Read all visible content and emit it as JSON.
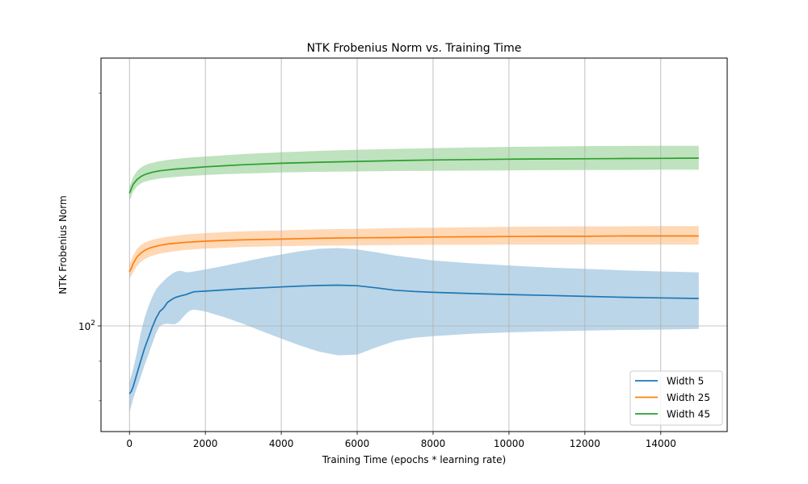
{
  "chart_data": {
    "type": "line",
    "title": "NTK Frobenius Norm vs. Training Time",
    "xlabel": "Training Time (epochs * learning rate)",
    "ylabel": "NTK Frobenius Norm",
    "y_scale": "log",
    "xlim": [
      -750,
      15750
    ],
    "ylim": [
      73,
      222
    ],
    "x_ticks": [
      0,
      2000,
      4000,
      6000,
      8000,
      10000,
      12000,
      14000
    ],
    "x_tick_labels": [
      "0",
      "2000",
      "4000",
      "6000",
      "8000",
      "10000",
      "12000",
      "14000"
    ],
    "y_major_ticks": [
      100
    ],
    "y_tick_base": "10",
    "y_tick_exponent": "2",
    "y_minor_ticks": [
      80,
      90,
      200
    ],
    "grid": true,
    "legend_position": "lower right",
    "series": [
      {
        "name": "Width 5",
        "color": "#1f77b4",
        "points": [
          [
            0,
            81.7
          ],
          [
            50,
            82.3
          ],
          [
            100,
            83.5
          ],
          [
            200,
            86.8
          ],
          [
            300,
            90.2
          ],
          [
            400,
            93.6
          ],
          [
            500,
            96.5
          ],
          [
            600,
            99.6
          ],
          [
            700,
            102.3
          ],
          [
            800,
            104.4
          ],
          [
            900,
            105.5
          ],
          [
            1000,
            107.2
          ],
          [
            1100,
            108.1
          ],
          [
            1200,
            108.8
          ],
          [
            1300,
            109.2
          ],
          [
            1400,
            109.5
          ],
          [
            1500,
            109.8
          ],
          [
            1600,
            110.3
          ],
          [
            1700,
            110.7
          ],
          [
            2000,
            110.9
          ],
          [
            2500,
            111.3
          ],
          [
            3000,
            111.7
          ],
          [
            3500,
            112.0
          ],
          [
            4000,
            112.3
          ],
          [
            4500,
            112.6
          ],
          [
            5000,
            112.8
          ],
          [
            5500,
            112.9
          ],
          [
            6000,
            112.7
          ],
          [
            6500,
            112.0
          ],
          [
            7000,
            111.2
          ],
          [
            7500,
            110.8
          ],
          [
            8000,
            110.5
          ],
          [
            9000,
            110.1
          ],
          [
            10000,
            109.8
          ],
          [
            11000,
            109.5
          ],
          [
            12000,
            109.2
          ],
          [
            13000,
            108.9
          ],
          [
            14000,
            108.7
          ],
          [
            15000,
            108.5
          ]
        ],
        "lower": [
          [
            0,
            77.3
          ],
          [
            100,
            80.5
          ],
          [
            200,
            83.3
          ],
          [
            300,
            86.0
          ],
          [
            400,
            89.0
          ],
          [
            500,
            91.8
          ],
          [
            600,
            94.8
          ],
          [
            700,
            97.8
          ],
          [
            800,
            100.0
          ],
          [
            900,
            100.5
          ],
          [
            1000,
            100.7
          ],
          [
            1100,
            100.5
          ],
          [
            1200,
            100.5
          ],
          [
            1300,
            101.2
          ],
          [
            1400,
            102.5
          ],
          [
            1500,
            103.8
          ],
          [
            1600,
            104.7
          ],
          [
            1700,
            105.0
          ],
          [
            2000,
            104.4
          ],
          [
            2500,
            102.6
          ],
          [
            3000,
            100.6
          ],
          [
            3500,
            98.4
          ],
          [
            4000,
            96.3
          ],
          [
            4500,
            94.3
          ],
          [
            5000,
            92.6
          ],
          [
            5500,
            91.6
          ],
          [
            6000,
            91.8
          ],
          [
            6500,
            93.8
          ],
          [
            7000,
            95.6
          ],
          [
            7500,
            96.5
          ],
          [
            8000,
            97.0
          ],
          [
            9000,
            97.7
          ],
          [
            10000,
            98.1
          ],
          [
            11000,
            98.4
          ],
          [
            12000,
            98.6
          ],
          [
            13000,
            98.8
          ],
          [
            14000,
            98.9
          ],
          [
            15000,
            99.1
          ]
        ],
        "upper": [
          [
            0,
            84.5
          ],
          [
            100,
            88.0
          ],
          [
            200,
            92.5
          ],
          [
            300,
            98.0
          ],
          [
            400,
            102.5
          ],
          [
            500,
            106.0
          ],
          [
            600,
            109.0
          ],
          [
            700,
            111.5
          ],
          [
            800,
            113.0
          ],
          [
            900,
            114.3
          ],
          [
            1000,
            115.6
          ],
          [
            1100,
            116.6
          ],
          [
            1200,
            117.4
          ],
          [
            1300,
            117.8
          ],
          [
            1400,
            117.7
          ],
          [
            1500,
            117.3
          ],
          [
            1600,
            117.4
          ],
          [
            1700,
            117.6
          ],
          [
            2000,
            118.3
          ],
          [
            2500,
            119.6
          ],
          [
            3000,
            121.0
          ],
          [
            3500,
            122.4
          ],
          [
            4000,
            123.7
          ],
          [
            4500,
            124.9
          ],
          [
            5000,
            125.8
          ],
          [
            5500,
            126.1
          ],
          [
            6000,
            125.6
          ],
          [
            6500,
            124.5
          ],
          [
            7000,
            123.3
          ],
          [
            7500,
            122.4
          ],
          [
            8000,
            121.5
          ],
          [
            9000,
            120.5
          ],
          [
            10000,
            119.7
          ],
          [
            11000,
            119.0
          ],
          [
            12000,
            118.5
          ],
          [
            13000,
            118.0
          ],
          [
            14000,
            117.6
          ],
          [
            15000,
            117.3
          ]
        ]
      },
      {
        "name": "Width 25",
        "color": "#ff7f0e",
        "points": [
          [
            0,
            117.5
          ],
          [
            50,
            118.7
          ],
          [
            100,
            120.5
          ],
          [
            200,
            122.8
          ],
          [
            300,
            124.2
          ],
          [
            400,
            125.2
          ],
          [
            500,
            125.9
          ],
          [
            600,
            126.4
          ],
          [
            800,
            127.1
          ],
          [
            1000,
            127.6
          ],
          [
            1200,
            127.9
          ],
          [
            1500,
            128.3
          ],
          [
            2000,
            128.7
          ],
          [
            2500,
            129.0
          ],
          [
            3000,
            129.2
          ],
          [
            4000,
            129.5
          ],
          [
            5000,
            129.8
          ],
          [
            6000,
            130.0
          ],
          [
            7000,
            130.1
          ],
          [
            8000,
            130.3
          ],
          [
            9000,
            130.4
          ],
          [
            10000,
            130.5
          ],
          [
            11000,
            130.6
          ],
          [
            12000,
            130.6
          ],
          [
            13000,
            130.7
          ],
          [
            14000,
            130.7
          ],
          [
            15000,
            130.7
          ]
        ],
        "lower": [
          [
            0,
            115.0
          ],
          [
            100,
            117.3
          ],
          [
            200,
            119.5
          ],
          [
            300,
            121.0
          ],
          [
            400,
            122.0
          ],
          [
            500,
            122.7
          ],
          [
            600,
            123.2
          ],
          [
            800,
            124.0
          ],
          [
            1000,
            124.5
          ],
          [
            1200,
            124.9
          ],
          [
            1500,
            125.4
          ],
          [
            2000,
            125.9
          ],
          [
            2500,
            126.2
          ],
          [
            3000,
            126.5
          ],
          [
            4000,
            126.8
          ],
          [
            5000,
            127.0
          ],
          [
            6000,
            127.1
          ],
          [
            7000,
            127.2
          ],
          [
            8000,
            127.3
          ],
          [
            9000,
            127.3
          ],
          [
            10000,
            127.4
          ],
          [
            11000,
            127.4
          ],
          [
            12000,
            127.4
          ],
          [
            13000,
            127.4
          ],
          [
            14000,
            127.4
          ],
          [
            15000,
            127.4
          ]
        ],
        "upper": [
          [
            0,
            120.0
          ],
          [
            100,
            123.4
          ],
          [
            200,
            125.8
          ],
          [
            300,
            127.2
          ],
          [
            400,
            128.1
          ],
          [
            500,
            128.7
          ],
          [
            600,
            129.2
          ],
          [
            800,
            129.9
          ],
          [
            1000,
            130.4
          ],
          [
            1200,
            130.8
          ],
          [
            1500,
            131.3
          ],
          [
            2000,
            131.8
          ],
          [
            2500,
            132.2
          ],
          [
            3000,
            132.5
          ],
          [
            4000,
            132.9
          ],
          [
            5000,
            133.3
          ],
          [
            6000,
            133.5
          ],
          [
            7000,
            133.8
          ],
          [
            8000,
            134.0
          ],
          [
            9000,
            134.1
          ],
          [
            10000,
            134.3
          ],
          [
            11000,
            134.4
          ],
          [
            12000,
            134.5
          ],
          [
            13000,
            134.5
          ],
          [
            14000,
            134.6
          ],
          [
            15000,
            134.6
          ]
        ]
      },
      {
        "name": "Width 45",
        "color": "#2ca02c",
        "points": [
          [
            0,
            148.5
          ],
          [
            50,
            150.5
          ],
          [
            100,
            152.5
          ],
          [
            200,
            154.6
          ],
          [
            300,
            156.0
          ],
          [
            400,
            156.9
          ],
          [
            500,
            157.5
          ],
          [
            600,
            158.0
          ],
          [
            800,
            158.7
          ],
          [
            1000,
            159.1
          ],
          [
            1200,
            159.5
          ],
          [
            1500,
            159.9
          ],
          [
            2000,
            160.6
          ],
          [
            2500,
            161.1
          ],
          [
            3000,
            161.6
          ],
          [
            4000,
            162.3
          ],
          [
            5000,
            162.8
          ],
          [
            6000,
            163.2
          ],
          [
            7000,
            163.6
          ],
          [
            8000,
            163.9
          ],
          [
            9000,
            164.1
          ],
          [
            10000,
            164.3
          ],
          [
            11000,
            164.4
          ],
          [
            12000,
            164.5
          ],
          [
            13000,
            164.6
          ],
          [
            14000,
            164.7
          ],
          [
            15000,
            164.8
          ]
        ],
        "lower": [
          [
            0,
            145.0
          ],
          [
            100,
            149.3
          ],
          [
            200,
            151.5
          ],
          [
            300,
            152.8
          ],
          [
            400,
            153.6
          ],
          [
            500,
            154.1
          ],
          [
            600,
            154.5
          ],
          [
            800,
            155.1
          ],
          [
            1000,
            155.5
          ],
          [
            1200,
            155.8
          ],
          [
            1500,
            156.2
          ],
          [
            2000,
            156.7
          ],
          [
            2500,
            157.1
          ],
          [
            3000,
            157.4
          ],
          [
            4000,
            157.9
          ],
          [
            5000,
            158.2
          ],
          [
            6000,
            158.4
          ],
          [
            7000,
            158.6
          ],
          [
            8000,
            158.7
          ],
          [
            9000,
            158.8
          ],
          [
            10000,
            158.9
          ],
          [
            11000,
            159.0
          ],
          [
            12000,
            159.1
          ],
          [
            13000,
            159.1
          ],
          [
            14000,
            159.2
          ],
          [
            15000,
            159.2
          ]
        ],
        "upper": [
          [
            0,
            151.0
          ],
          [
            100,
            156.0
          ],
          [
            200,
            158.5
          ],
          [
            300,
            160.2
          ],
          [
            400,
            161.3
          ],
          [
            500,
            162.0
          ],
          [
            600,
            162.5
          ],
          [
            800,
            163.3
          ],
          [
            1000,
            163.9
          ],
          [
            1200,
            164.3
          ],
          [
            1500,
            164.9
          ],
          [
            2000,
            165.6
          ],
          [
            2500,
            166.2
          ],
          [
            3000,
            166.8
          ],
          [
            4000,
            167.7
          ],
          [
            5000,
            168.4
          ],
          [
            6000,
            169.0
          ],
          [
            7000,
            169.4
          ],
          [
            8000,
            169.8
          ],
          [
            9000,
            170.1
          ],
          [
            10000,
            170.4
          ],
          [
            11000,
            170.6
          ],
          [
            12000,
            170.8
          ],
          [
            13000,
            170.9
          ],
          [
            14000,
            171.0
          ],
          [
            15000,
            171.0
          ]
        ]
      }
    ]
  }
}
